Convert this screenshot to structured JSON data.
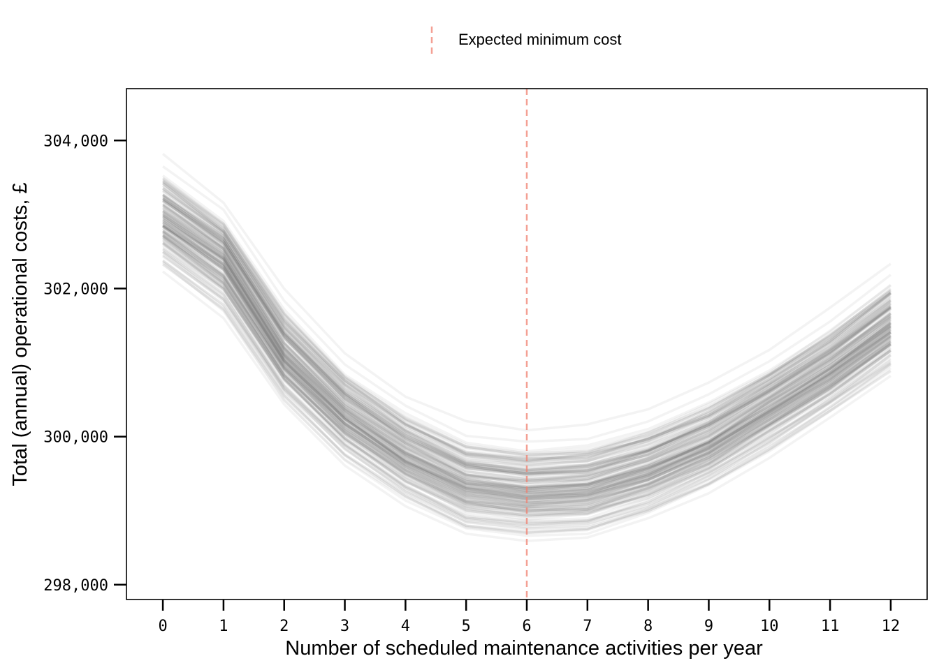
{
  "chart_data": {
    "type": "line",
    "xlabel": "Number of scheduled maintenance activities per year",
    "ylabel": "Total (annual) operational costs, £",
    "x": [
      0,
      1,
      2,
      3,
      4,
      5,
      6,
      7,
      8,
      9,
      10,
      11,
      12
    ],
    "x_tick_labels": [
      "0",
      "1",
      "2",
      "3",
      "4",
      "5",
      "6",
      "7",
      "8",
      "9",
      "10",
      "11",
      "12"
    ],
    "y_ticks": [
      298000,
      300000,
      302000,
      304000
    ],
    "y_tick_labels": [
      "298,000",
      "300,000",
      "302,000",
      "304,000"
    ],
    "xlim": [
      -0.6,
      12.6
    ],
    "ylim": [
      297800,
      304700
    ],
    "series_summary": {
      "description_values": "ensemble of simulated cost curves",
      "lower_envelope": [
        301750,
        301050,
        299950,
        299150,
        298600,
        298200,
        298100,
        298150,
        298400,
        298800,
        299250,
        299800,
        300350
      ],
      "central_curve": [
        302950,
        302400,
        301100,
        300300,
        299750,
        299350,
        299250,
        299300,
        299550,
        299900,
        300400,
        300900,
        301500
      ],
      "upper_envelope": [
        304350,
        303650,
        302550,
        301650,
        301050,
        300700,
        300600,
        300650,
        300850,
        301200,
        301650,
        302200,
        302850
      ]
    },
    "n_curves": 160,
    "curve_color": "#555555",
    "vline": {
      "x": 6,
      "label": "Expected minimum cost",
      "color": "#f08070",
      "style": "dashed"
    },
    "legend": {
      "placement": "top-center",
      "entries": [
        "Expected minimum cost"
      ]
    },
    "grid": false
  }
}
